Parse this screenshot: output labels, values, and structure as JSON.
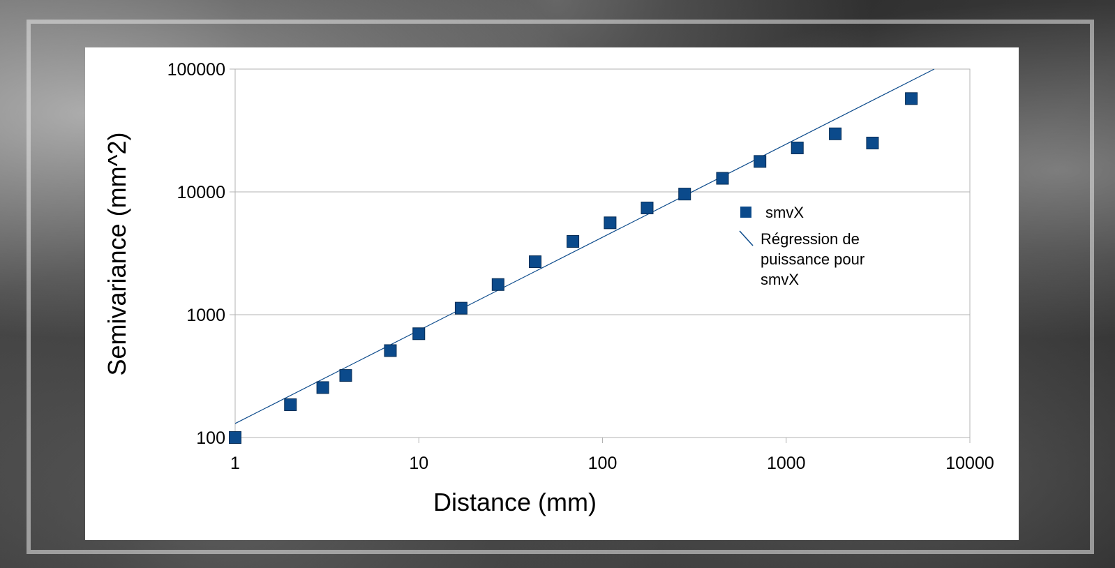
{
  "chart_data": {
    "type": "scatter",
    "xlabel": "Distance (mm)",
    "ylabel": "Semivariance (mm^2)",
    "xscale": "log",
    "yscale": "log",
    "xlim": [
      1,
      10000
    ],
    "ylim": [
      100,
      100000
    ],
    "x_ticks": [
      "1",
      "10",
      "100",
      "1000",
      "10000"
    ],
    "y_ticks": [
      "100",
      "1000",
      "10000",
      "100000"
    ],
    "grid": "horizontal major gridlines",
    "legend_position": "right",
    "series": [
      {
        "name": "smvX",
        "marker": "square",
        "color": "#0b4a8b",
        "points": [
          [
            1,
            100
          ],
          [
            2,
            185
          ],
          [
            3,
            255
          ],
          [
            4,
            320
          ],
          [
            7,
            510
          ],
          [
            10,
            700
          ],
          [
            17,
            1130
          ],
          [
            27,
            1760
          ],
          [
            43,
            2700
          ],
          [
            69,
            3950
          ],
          [
            110,
            5600
          ],
          [
            175,
            7400
          ],
          [
            280,
            9600
          ],
          [
            450,
            12900
          ],
          [
            720,
            17700
          ],
          [
            1150,
            22800
          ],
          [
            1850,
            29700
          ],
          [
            2950,
            25000
          ],
          [
            4800,
            57500
          ]
        ]
      }
    ],
    "trendline": {
      "name": "Régression de puissance pour smvX",
      "type": "power",
      "color": "#0b4a8b",
      "points": [
        [
          1,
          130
        ],
        [
          6400,
          100000
        ]
      ]
    },
    "legend": {
      "entries": [
        {
          "symbol": "square",
          "label": "smvX"
        },
        {
          "symbol": "line",
          "label_lines": [
            "Régression de",
            "puissance pour",
            "smvX"
          ]
        }
      ]
    }
  }
}
